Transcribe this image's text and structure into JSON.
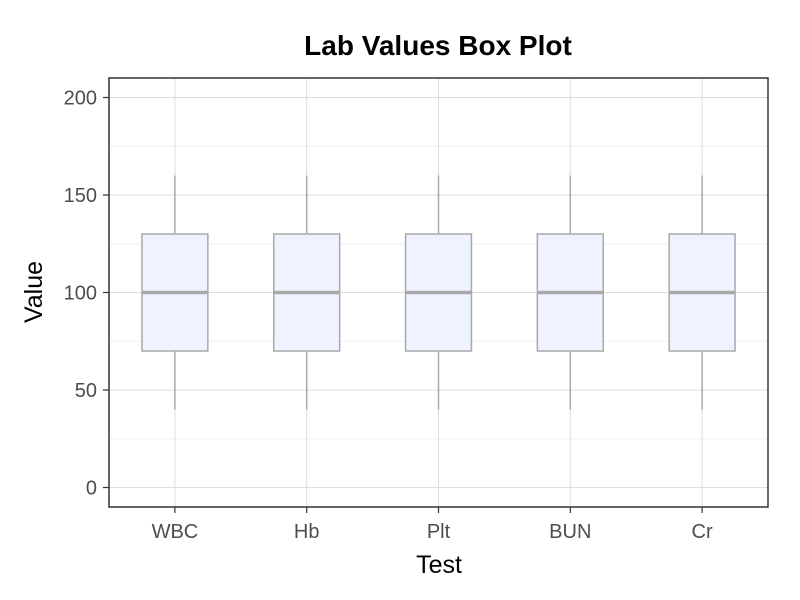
{
  "chart_data": {
    "type": "box",
    "title": "Lab Values Box Plot",
    "xlabel": "Test",
    "ylabel": "Value",
    "categories": [
      "WBC",
      "Hb",
      "Plt",
      "BUN",
      "Cr"
    ],
    "boxes": [
      {
        "category": "WBC",
        "min": 40,
        "q1": 70,
        "median": 100,
        "q3": 130,
        "max": 160
      },
      {
        "category": "Hb",
        "min": 40,
        "q1": 70,
        "median": 100,
        "q3": 130,
        "max": 160
      },
      {
        "category": "Plt",
        "min": 40,
        "q1": 70,
        "median": 100,
        "q3": 130,
        "max": 160
      },
      {
        "category": "BUN",
        "min": 40,
        "q1": 70,
        "median": 100,
        "q3": 130,
        "max": 160
      },
      {
        "category": "Cr",
        "min": 40,
        "q1": 70,
        "median": 100,
        "q3": 130,
        "max": 160
      }
    ],
    "ylim": [
      -10,
      210
    ],
    "yticks": [
      0,
      50,
      100,
      150,
      200
    ],
    "grid": true,
    "legend": "none",
    "colors": {
      "box_fill": "#eef3ff",
      "box_stroke": "#a9a9a9",
      "median": "#a9a9a9",
      "grid_major": "#dcdcdc",
      "grid_minor": "#efefef",
      "panel_border": "#333333"
    }
  }
}
